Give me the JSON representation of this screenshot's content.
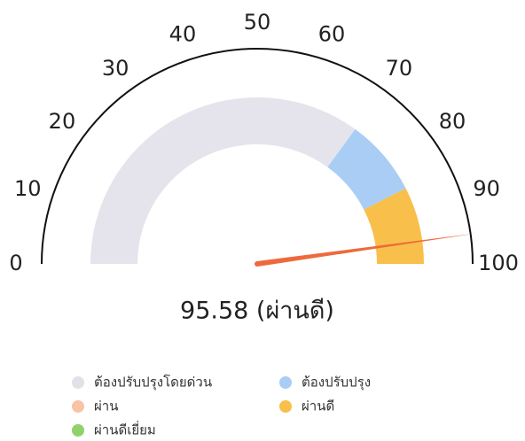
{
  "chart_data": {
    "type": "gauge",
    "value": 95.58,
    "value_label": "95.58 (ผ่านดี)",
    "needle_color": "#ee6a3c",
    "lim": [
      0,
      100
    ],
    "ticks": [
      0,
      10,
      20,
      30,
      40,
      50,
      60,
      70,
      80,
      90,
      100
    ],
    "bands": [
      {
        "from": 0,
        "to": 70,
        "color": "#e5e4ec"
      },
      {
        "from": 70,
        "to": 85,
        "color": "#a9cdf5"
      },
      {
        "from": 85,
        "to": 100,
        "color": "#f8c04a"
      }
    ],
    "legend": [
      {
        "name": "ต้องปรับปรุงโดยด่วน",
        "color": "#e2e1e8"
      },
      {
        "name": "ต้องปรับปรุง",
        "color": "#a9cdf5"
      },
      {
        "name": "ผ่าน",
        "color": "#f9c3a8"
      },
      {
        "name": "ผ่านดี",
        "color": "#f8c04a"
      },
      {
        "name": "ผ่านดีเยี่ยม",
        "color": "#8fd16a"
      }
    ]
  }
}
